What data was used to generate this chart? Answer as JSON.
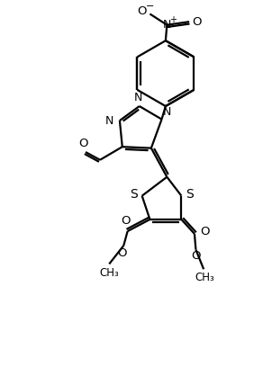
{
  "line_color": "#000000",
  "background_color": "#ffffff",
  "lw": 1.6,
  "fig_width": 2.92,
  "fig_height": 4.08,
  "dpi": 100,
  "xlim": [
    0,
    10
  ],
  "ylim": [
    0,
    14
  ]
}
